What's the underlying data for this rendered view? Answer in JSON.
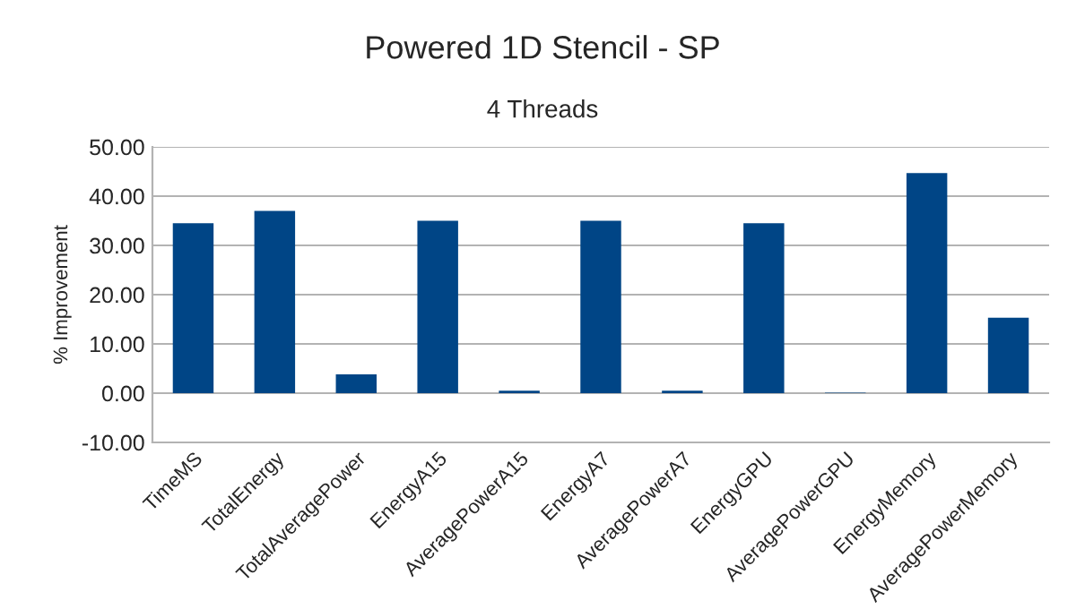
{
  "chart_data": {
    "type": "bar",
    "title": "Powered 1D Stencil - SP",
    "subtitle": "4 Threads",
    "ylabel": "% Improvement",
    "categories": [
      "TimeMS",
      "TotalEnergy",
      "TotalAveragePower",
      "EnergyA15",
      "AveragePowerA15",
      "EnergyA7",
      "AveragePowerA7",
      "EnergyGPU",
      "AveragePowerGPU",
      "EnergyMemory",
      "AveragePowerMemory"
    ],
    "values": [
      34.5,
      37.0,
      3.8,
      35.0,
      0.5,
      35.0,
      0.5,
      34.5,
      0.1,
      44.7,
      15.3
    ],
    "color": "#004586",
    "ylim": [
      -10,
      50
    ],
    "yticks": [
      {
        "value": -10,
        "label": "-10.00"
      },
      {
        "value": 0,
        "label": "0.00"
      },
      {
        "value": 10,
        "label": "10.00"
      },
      {
        "value": 20,
        "label": "20.00"
      },
      {
        "value": 30,
        "label": "30.00"
      },
      {
        "value": 40,
        "label": "40.00"
      },
      {
        "value": 50,
        "label": "50.00"
      }
    ],
    "grid": "y"
  }
}
